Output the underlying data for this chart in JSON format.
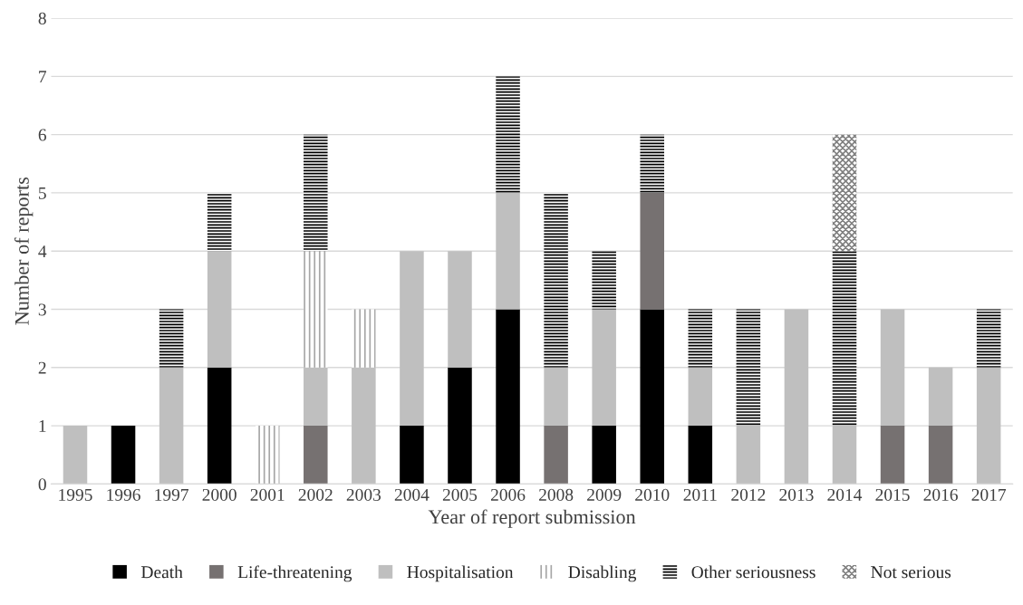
{
  "chart_data": {
    "type": "bar",
    "stacked": true,
    "xlabel": "Year of report submission",
    "ylabel": "Number of reports",
    "categories": [
      "1995",
      "1996",
      "1997",
      "2000",
      "2001",
      "2002",
      "2003",
      "2004",
      "2005",
      "2006",
      "2008",
      "2009",
      "2010",
      "2011",
      "2012",
      "2013",
      "2014",
      "2015",
      "2016",
      "2017"
    ],
    "series": [
      {
        "name": "Death",
        "color": "#000000",
        "values": [
          0,
          1,
          0,
          2,
          0,
          0,
          0,
          1,
          2,
          3,
          0,
          1,
          3,
          1,
          0,
          0,
          0,
          0,
          0,
          0
        ]
      },
      {
        "name": "Life-threatening",
        "color": "#767171",
        "values": [
          0,
          0,
          0,
          0,
          0,
          1,
          0,
          0,
          0,
          0,
          1,
          0,
          2,
          0,
          0,
          0,
          0,
          1,
          1,
          0
        ]
      },
      {
        "name": "Hospitalisation",
        "color": "#bfbfbf",
        "values": [
          1,
          0,
          2,
          2,
          0,
          1,
          2,
          3,
          2,
          2,
          1,
          2,
          0,
          1,
          1,
          3,
          1,
          2,
          1,
          2
        ]
      },
      {
        "name": "Disabling",
        "color": "#a6a6a6",
        "values": [
          0,
          0,
          0,
          0,
          1,
          2,
          1,
          0,
          0,
          0,
          0,
          0,
          0,
          0,
          0,
          0,
          0,
          0,
          0,
          0
        ]
      },
      {
        "name": "Other seriousness",
        "color": "#000000",
        "values": [
          0,
          0,
          1,
          1,
          0,
          2,
          0,
          0,
          0,
          2,
          3,
          1,
          1,
          1,
          2,
          0,
          3,
          0,
          0,
          1
        ]
      },
      {
        "name": "Not serious",
        "color": "#7f7f7f",
        "values": [
          0,
          0,
          0,
          0,
          0,
          0,
          0,
          0,
          0,
          0,
          0,
          0,
          0,
          0,
          0,
          0,
          2,
          0,
          0,
          0
        ]
      }
    ],
    "ylim": [
      0,
      8
    ],
    "yticks": [
      0,
      1,
      2,
      3,
      4,
      5,
      6,
      7,
      8
    ],
    "grid": "y",
    "legend": "bottom"
  }
}
